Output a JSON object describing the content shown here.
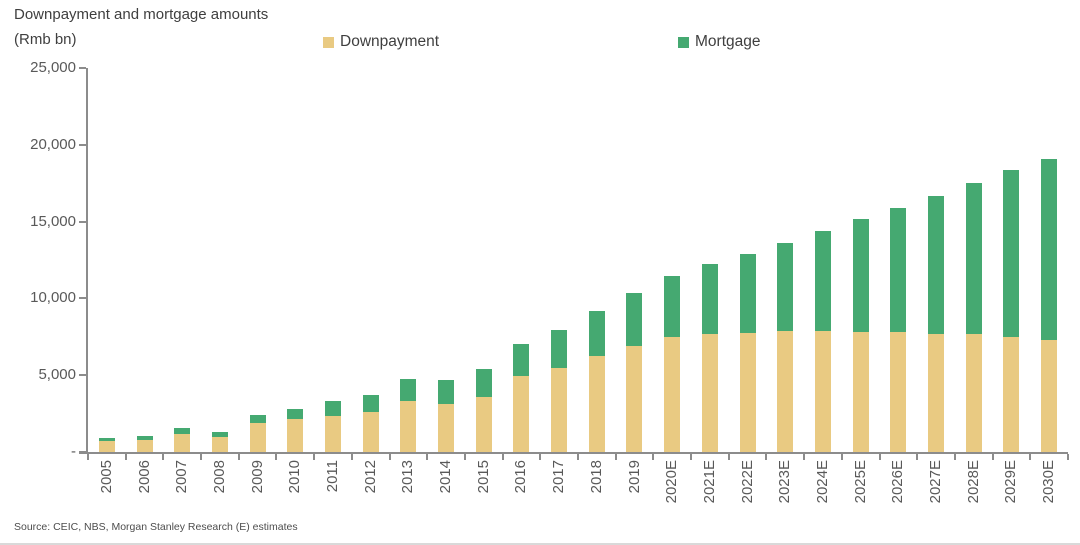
{
  "title": "Downpayment and mortgage amounts",
  "source": "Source: CEIC, NBS, Morgan Stanley Research (E) estimates",
  "colors": {
    "downpayment": "#E9CA82",
    "mortgage": "#45A971",
    "axis": "#8c8c8c",
    "text": "#3f3f3f",
    "tick_text": "#595959"
  },
  "chart_data": {
    "type": "bar",
    "stacked": true,
    "title": "Downpayment and mortgage amounts",
    "ylabel": "(Rmb bn)",
    "xlabel": "",
    "grid": false,
    "legend_position": "top",
    "ylim": [
      0,
      25000
    ],
    "ytick_values": [
      0,
      5000,
      10000,
      15000,
      20000,
      25000
    ],
    "ytick_labels": [
      "-",
      "5,000",
      "10,000",
      "15,000",
      "20,000",
      "25,000"
    ],
    "categories": [
      "2005",
      "2006",
      "2007",
      "2008",
      "2009",
      "2010",
      "2011",
      "2012",
      "2013",
      "2014",
      "2015",
      "2016",
      "2017",
      "2018",
      "2019",
      "2020E",
      "2021E",
      "2022E",
      "2023E",
      "2024E",
      "2025E",
      "2026E",
      "2027E",
      "2028E",
      "2029E",
      "2030E"
    ],
    "series": [
      {
        "name": "Downpayment",
        "color": "#E9CA82",
        "values": [
          700,
          810,
          1200,
          1000,
          1900,
          2150,
          2350,
          2600,
          3350,
          3100,
          3600,
          4950,
          5500,
          6250,
          6900,
          7500,
          7650,
          7750,
          7850,
          7850,
          7800,
          7800,
          7700,
          7650,
          7500,
          7300
        ]
      },
      {
        "name": "Mortgage",
        "color": "#45A971",
        "values": [
          220,
          280,
          375,
          350,
          550,
          680,
          950,
          1100,
          1400,
          1550,
          1800,
          2100,
          2500,
          2950,
          3450,
          3950,
          4550,
          5150,
          5750,
          6500,
          7350,
          8100,
          9000,
          9850,
          10850,
          11800
        ]
      }
    ],
    "totals": [
      920,
      1090,
      1575,
      1350,
      2450,
      2830,
      3300,
      3700,
      4750,
      4650,
      5400,
      7050,
      8000,
      9200,
      10350,
      11450,
      12200,
      12900,
      13600,
      14350,
      15150,
      15900,
      16700,
      17500,
      18350,
      19100
    ]
  }
}
